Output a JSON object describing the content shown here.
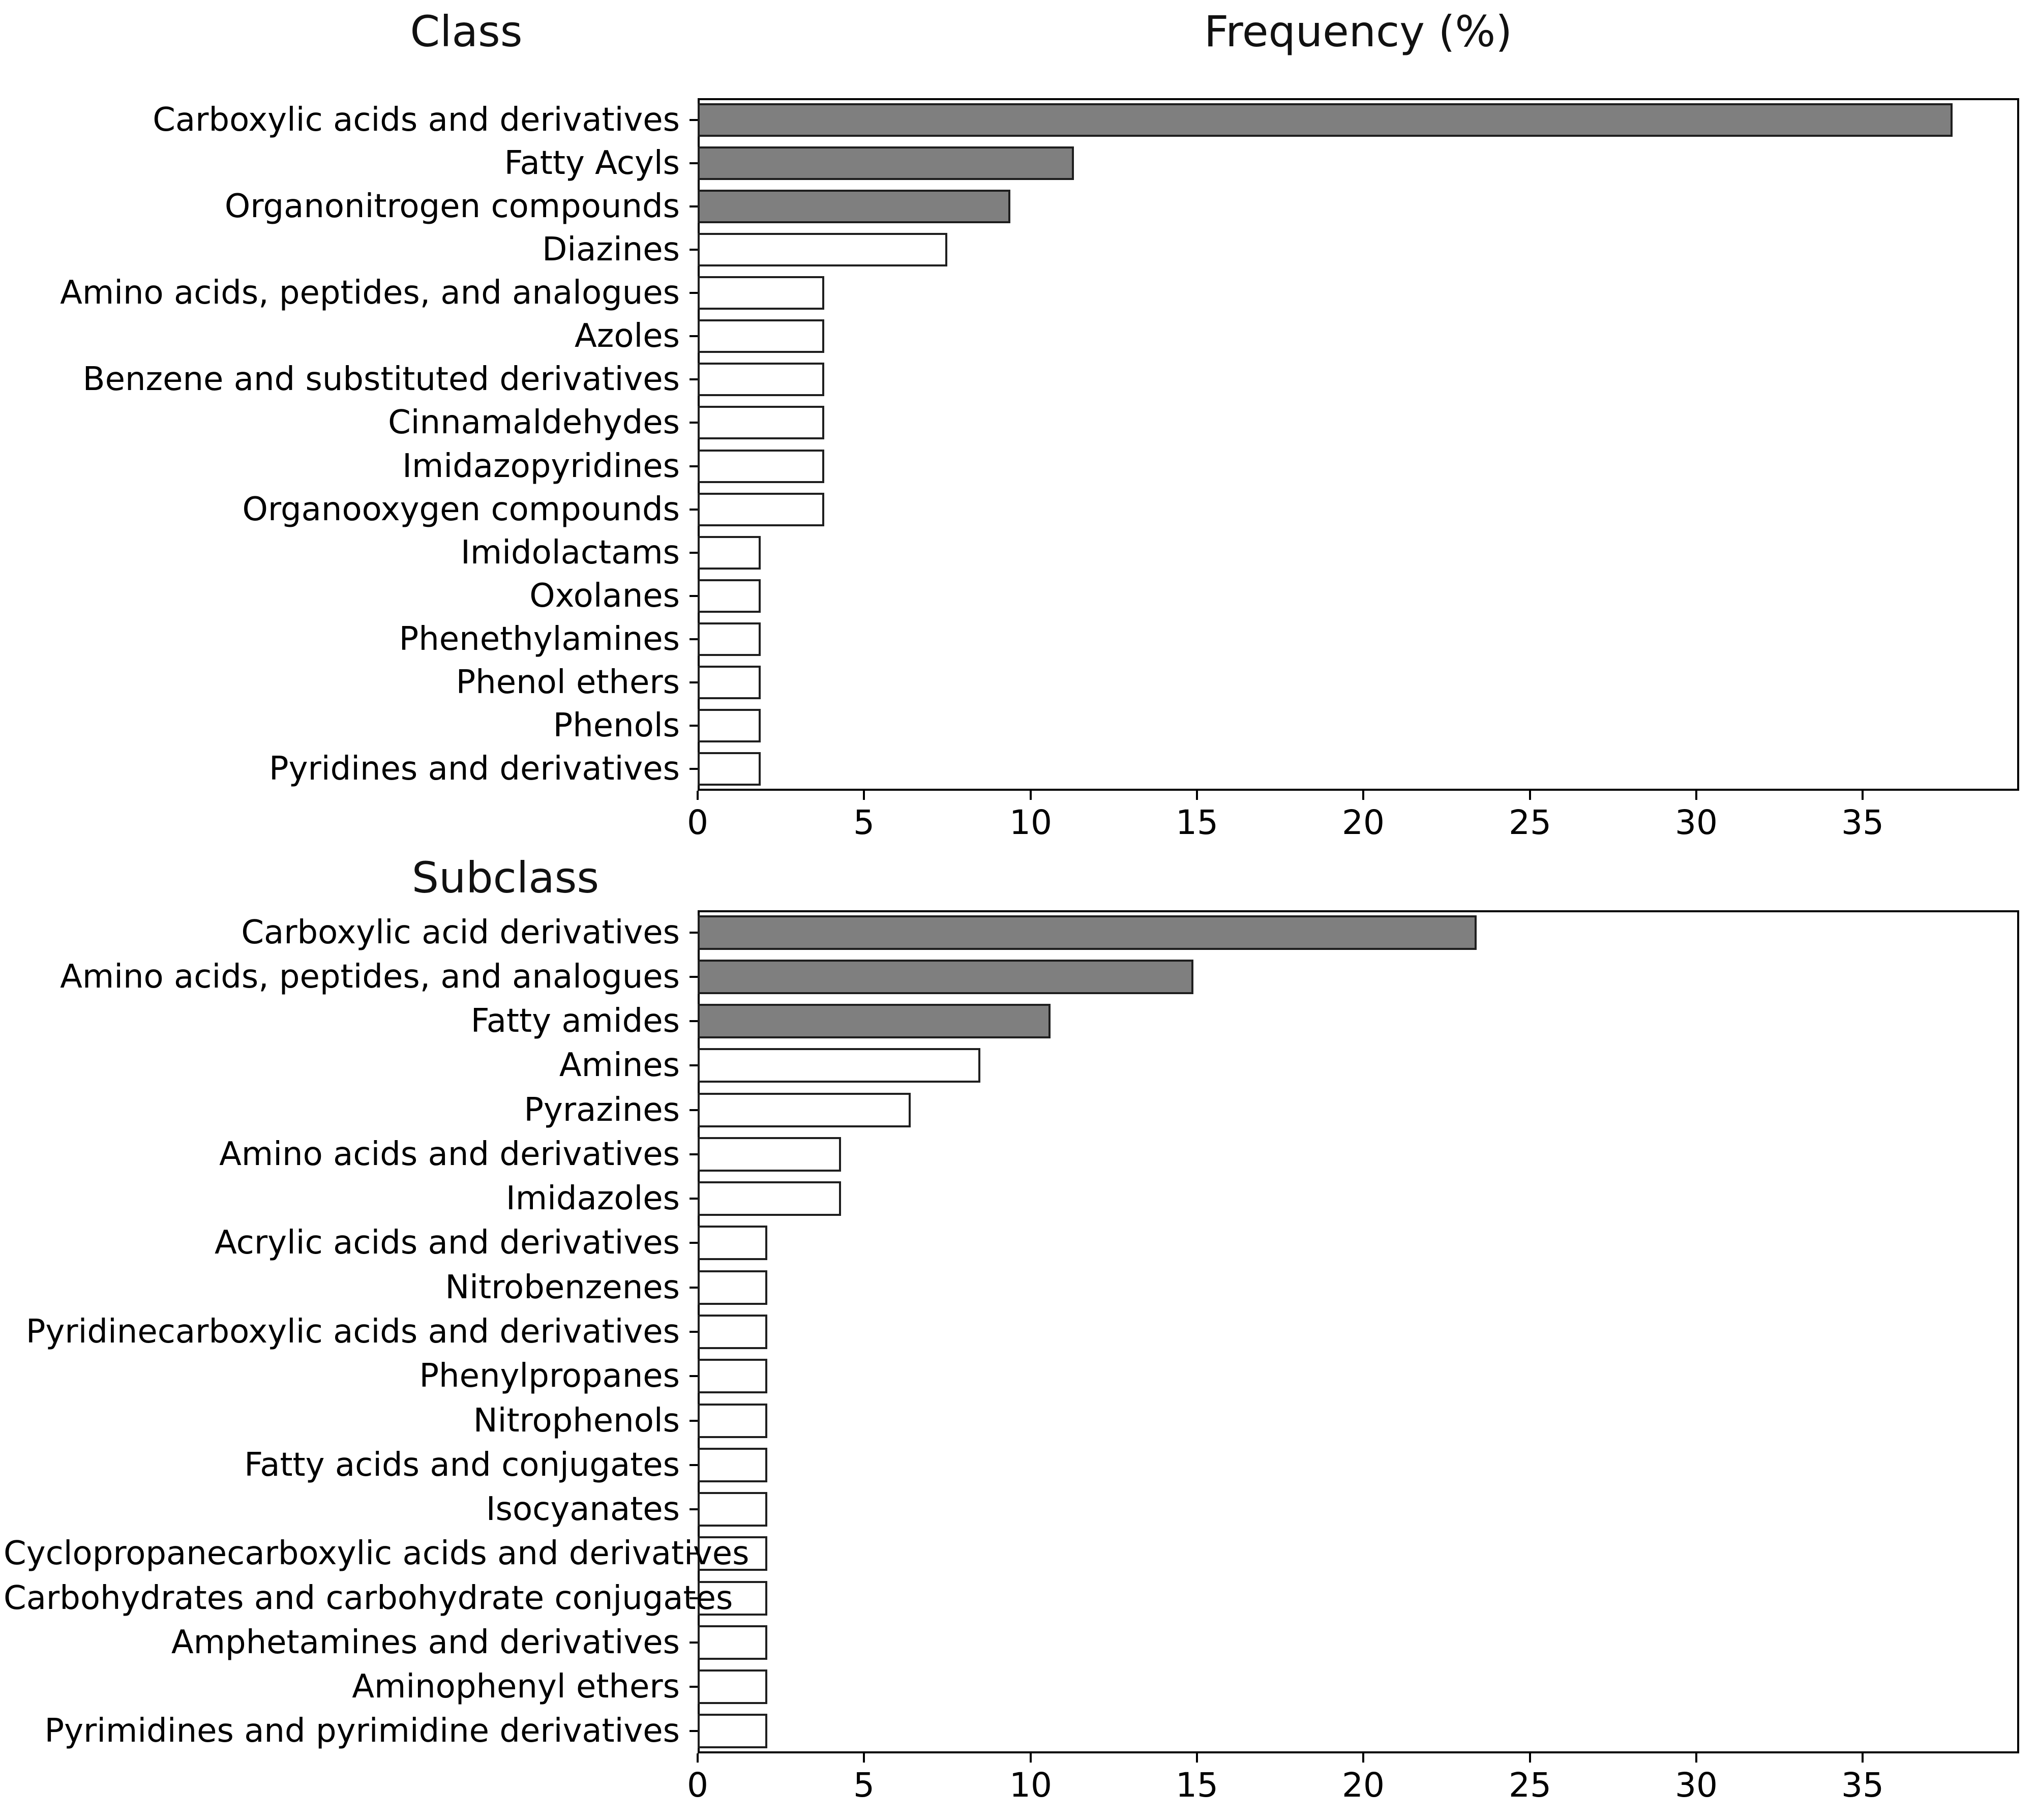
{
  "figure": {
    "background": "#ffffff",
    "bar_fill_color": "#7f7f7f",
    "bar_open_color": "#ffffff",
    "bar_edge_color": "#1f1f1f",
    "axis_color": "#000000"
  },
  "chart_data": [
    {
      "type": "bar",
      "orientation": "horizontal",
      "title": "Class",
      "xlabel": "Frequency (%)",
      "ylabel": "",
      "xlim": [
        0,
        39.7
      ],
      "xticks": [
        0,
        5,
        10,
        15,
        20,
        25,
        30,
        35
      ],
      "grid": false,
      "legend": "none",
      "categories": [
        "Carboxylic acids and derivatives",
        "Fatty Acyls",
        "Organonitrogen compounds",
        "Diazines",
        "Amino acids, peptides, and analogues",
        "Azoles",
        "Benzene and substituted derivatives",
        "Cinnamaldehydes",
        "Imidazopyridines",
        "Organooxygen compounds",
        "Imidolactams",
        "Oxolanes",
        "Phenethylamines",
        "Phenol ethers",
        "Phenols",
        "Pyridines and derivatives"
      ],
      "values": [
        37.7,
        11.3,
        9.4,
        7.5,
        3.8,
        3.8,
        3.8,
        3.8,
        3.8,
        3.8,
        1.9,
        1.9,
        1.9,
        1.9,
        1.9,
        1.9
      ],
      "filled": [
        true,
        true,
        true,
        false,
        false,
        false,
        false,
        false,
        false,
        false,
        false,
        false,
        false,
        false,
        false,
        false
      ]
    },
    {
      "type": "bar",
      "orientation": "horizontal",
      "title": "Subclass",
      "xlabel": "",
      "ylabel": "",
      "xlim": [
        0,
        39.7
      ],
      "xticks": [
        0,
        5,
        10,
        15,
        20,
        25,
        30,
        35
      ],
      "grid": false,
      "legend": "none",
      "categories": [
        "Carboxylic acid derivatives",
        "Amino acids, peptides, and analogues",
        "Fatty amides",
        "Amines",
        "Pyrazines",
        "Amino acids and derivatives",
        "Imidazoles",
        "Acrylic acids and derivatives",
        "Nitrobenzenes",
        "Pyridinecarboxylic acids and derivatives",
        "Phenylpropanes",
        "Nitrophenols",
        "Fatty acids and conjugates",
        "Isocyanates",
        "Cyclopropanecarboxylic acids and derivatives",
        "Carbohydrates and carbohydrate conjugates",
        "Amphetamines and derivatives",
        "Aminophenyl ethers",
        "Pyrimidines and pyrimidine derivatives"
      ],
      "values": [
        23.4,
        14.9,
        10.6,
        8.5,
        6.4,
        4.3,
        4.3,
        2.1,
        2.1,
        2.1,
        2.1,
        2.1,
        2.1,
        2.1,
        2.1,
        2.1,
        2.1,
        2.1,
        2.1
      ],
      "filled": [
        true,
        true,
        true,
        false,
        false,
        false,
        false,
        false,
        false,
        false,
        false,
        false,
        false,
        false,
        false,
        false,
        false,
        false,
        false
      ]
    }
  ]
}
